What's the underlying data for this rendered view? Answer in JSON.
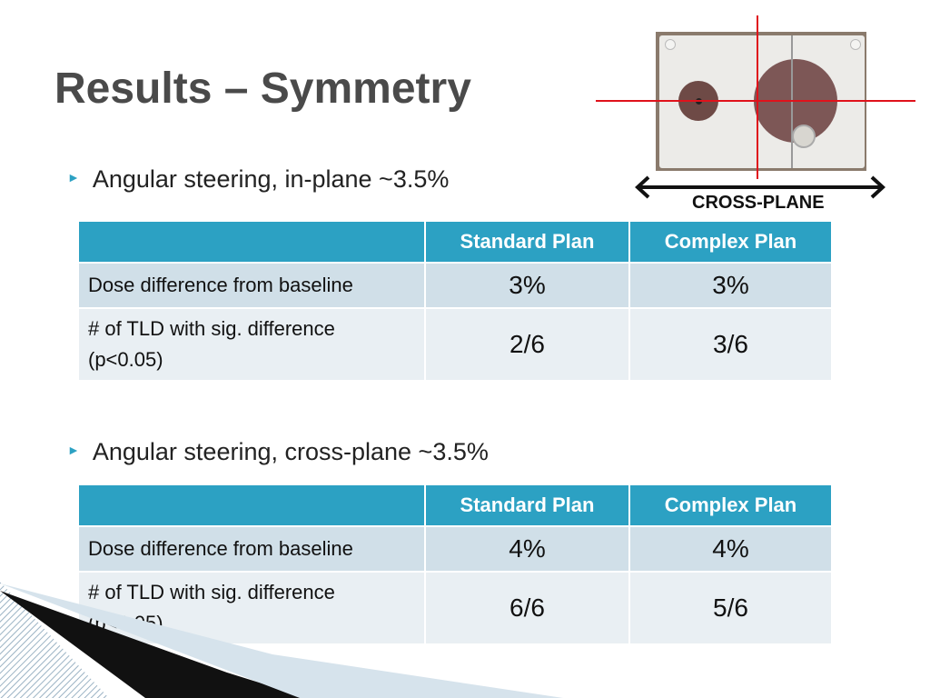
{
  "slide": {
    "title": "Results – Symmetry",
    "photo_label": "CROSS-PLANE"
  },
  "sections": [
    {
      "bullet": "Angular steering, in-plane ~3.5%",
      "table": {
        "headers": [
          "",
          "Standard Plan",
          "Complex Plan"
        ],
        "rows": [
          {
            "label": "Dose difference from baseline",
            "standard": "3%",
            "complex": "3%"
          },
          {
            "label": "# of TLD with sig. difference (p<0.05)",
            "standard": "2/6",
            "complex": "3/6"
          }
        ]
      }
    },
    {
      "bullet": "Angular steering, cross-plane ~3.5%",
      "table": {
        "headers": [
          "",
          "Standard Plan",
          "Complex Plan"
        ],
        "rows": [
          {
            "label": "Dose difference from baseline",
            "standard": "4%",
            "complex": "4%"
          },
          {
            "label": "# of TLD with sig. difference (p<0.05)",
            "standard": "6/6",
            "complex": "5/6"
          }
        ]
      }
    }
  ],
  "colors": {
    "header_bg": "#2ca1c3",
    "row1_bg": "#d0dfe8",
    "row2_bg": "#e9eff3",
    "crosshair": "#e0121b",
    "title_text": "#4a4a4a"
  }
}
